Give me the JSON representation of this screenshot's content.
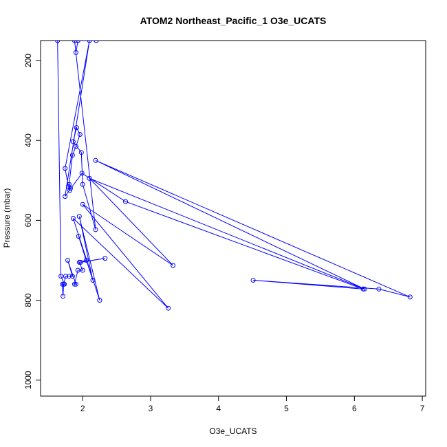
{
  "chart_data": {
    "type": "scatter",
    "title": "ATOM2 Northeast_Pacific_1 O3e_UCATS",
    "xlabel": "O3e_UCATS",
    "ylabel": "Pressure (mbar)",
    "xlim": [
      1.38,
      7.05
    ],
    "ylim": [
      1040,
      150
    ],
    "y_reversed": true,
    "x_ticks": [
      2,
      3,
      4,
      5,
      6,
      7
    ],
    "y_ticks": [
      200,
      400,
      600,
      800,
      1000
    ],
    "grid": false,
    "legend": "none",
    "color": "#0000ff",
    "series": [
      {
        "values": [
          [
            1.63,
            150
          ],
          [
            1.68,
            740
          ],
          [
            1.73,
            760
          ],
          [
            1.7,
            760
          ],
          [
            1.71,
            790
          ],
          [
            1.72,
            760
          ],
          [
            1.75,
            740
          ],
          [
            1.8,
            740
          ],
          [
            1.85,
            740
          ],
          [
            1.78,
            700
          ],
          [
            1.9,
            760
          ],
          [
            1.88,
            760
          ],
          [
            1.93,
            725
          ],
          [
            2.0,
            725
          ],
          [
            1.95,
            705
          ],
          [
            2.33,
            695
          ],
          [
            1.97,
            705
          ],
          [
            2.05,
            700
          ],
          [
            1.94,
            640
          ],
          [
            2.15,
            750
          ],
          [
            1.95,
            590
          ],
          [
            2.25,
            800
          ],
          [
            1.86,
            595
          ],
          [
            3.26,
            820
          ],
          [
            2.0,
            560
          ],
          [
            3.33,
            713
          ],
          [
            2.1,
            495
          ],
          [
            6.15,
            772
          ],
          [
            2.19,
            450
          ],
          [
            6.82,
            792
          ],
          [
            6.36,
            772
          ],
          [
            4.51,
            750
          ],
          [
            6.13,
            772
          ],
          [
            2.63,
            553
          ],
          [
            1.99,
            482
          ],
          [
            1.74,
            540
          ],
          [
            2.1,
            150
          ],
          [
            1.74,
            470
          ],
          [
            1.79,
            515
          ],
          [
            1.82,
            520
          ],
          [
            1.81,
            525
          ],
          [
            1.8,
            510
          ],
          [
            1.85,
            437
          ],
          [
            1.9,
            415
          ],
          [
            1.96,
            385
          ],
          [
            1.91,
            368
          ],
          [
            1.86,
            403
          ],
          [
            1.98,
            430
          ],
          [
            2.0,
            510
          ],
          [
            2.19,
            623
          ],
          [
            1.88,
            150
          ],
          [
            1.9,
            180
          ],
          [
            1.93,
            150
          ],
          [
            2.2,
            150
          ]
        ]
      }
    ]
  }
}
